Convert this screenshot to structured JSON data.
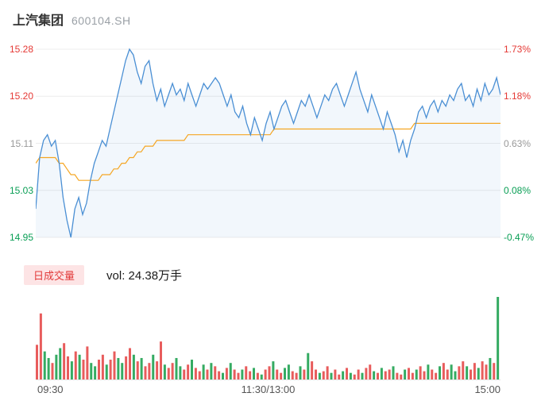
{
  "header": {
    "stock_name": "上汽集团",
    "stock_code": "600104.SH"
  },
  "volume_panel": {
    "tab_label": "日成交量",
    "value_text": "vol: 24.38万手"
  },
  "colors": {
    "up": "#e53935",
    "down": "#089e54",
    "flat": "#999999",
    "price_line": "#4a8fd4",
    "avg_line": "#f5a623",
    "price_fill": "rgba(74,143,212,0.07)",
    "vol_up": "#e85c5c",
    "vol_down": "#35ab62",
    "grid": "#ececec",
    "axis_text": "#555555"
  },
  "chart_data": {
    "type": "line",
    "title": "上汽集团 600104.SH 分时走势",
    "prev_close": 15.02,
    "ylim": [
      14.95,
      15.28
    ],
    "grid": true,
    "y_axis_left": {
      "labels": [
        "15.28",
        "15.20",
        "15.11",
        "15.03",
        "14.95"
      ],
      "roles": [
        "up",
        "up",
        "flat",
        "down",
        "down"
      ]
    },
    "y_axis_right": {
      "labels": [
        "1.73%",
        "1.18%",
        "0.63%",
        "0.08%",
        "-0.47%"
      ],
      "roles": [
        "up",
        "up",
        "flat",
        "down",
        "down"
      ]
    },
    "x_axis": {
      "labels": [
        "09:30",
        "11:30/13:00",
        "15:00"
      ]
    },
    "series": [
      {
        "name": "price",
        "values": [
          15.0,
          15.09,
          15.12,
          15.13,
          15.11,
          15.12,
          15.08,
          15.02,
          14.98,
          14.95,
          15.0,
          15.02,
          14.99,
          15.01,
          15.05,
          15.08,
          15.1,
          15.12,
          15.11,
          15.14,
          15.17,
          15.2,
          15.23,
          15.26,
          15.28,
          15.27,
          15.24,
          15.22,
          15.25,
          15.26,
          15.22,
          15.19,
          15.21,
          15.18,
          15.2,
          15.22,
          15.2,
          15.21,
          15.19,
          15.22,
          15.2,
          15.18,
          15.2,
          15.22,
          15.21,
          15.22,
          15.23,
          15.22,
          15.2,
          15.18,
          15.2,
          15.17,
          15.16,
          15.18,
          15.15,
          15.13,
          15.16,
          15.14,
          15.12,
          15.15,
          15.17,
          15.14,
          15.16,
          15.18,
          15.19,
          15.17,
          15.15,
          15.17,
          15.19,
          15.18,
          15.2,
          15.18,
          15.16,
          15.18,
          15.2,
          15.19,
          15.21,
          15.22,
          15.2,
          15.18,
          15.2,
          15.22,
          15.24,
          15.21,
          15.19,
          15.17,
          15.2,
          15.18,
          15.16,
          15.14,
          15.17,
          15.15,
          15.13,
          15.1,
          15.12,
          15.09,
          15.12,
          15.14,
          15.17,
          15.18,
          15.16,
          15.18,
          15.19,
          15.17,
          15.19,
          15.18,
          15.2,
          15.19,
          15.21,
          15.22,
          15.19,
          15.2,
          15.18,
          15.21,
          15.19,
          15.22,
          15.2,
          15.21,
          15.23,
          15.2
        ]
      },
      {
        "name": "avg",
        "values": [
          15.08,
          15.09,
          15.09,
          15.09,
          15.09,
          15.09,
          15.08,
          15.08,
          15.07,
          15.06,
          15.06,
          15.05,
          15.05,
          15.05,
          15.05,
          15.05,
          15.05,
          15.06,
          15.06,
          15.06,
          15.07,
          15.07,
          15.08,
          15.08,
          15.09,
          15.09,
          15.1,
          15.1,
          15.11,
          15.11,
          15.11,
          15.12,
          15.12,
          15.12,
          15.12,
          15.12,
          15.12,
          15.12,
          15.12,
          15.13,
          15.13,
          15.13,
          15.13,
          15.13,
          15.13,
          15.13,
          15.13,
          15.13,
          15.13,
          15.13,
          15.13,
          15.13,
          15.13,
          15.13,
          15.13,
          15.13,
          15.13,
          15.13,
          15.13,
          15.13,
          15.13,
          15.14,
          15.14,
          15.14,
          15.14,
          15.14,
          15.14,
          15.14,
          15.14,
          15.14,
          15.14,
          15.14,
          15.14,
          15.14,
          15.14,
          15.14,
          15.14,
          15.14,
          15.14,
          15.14,
          15.14,
          15.14,
          15.14,
          15.14,
          15.14,
          15.14,
          15.14,
          15.14,
          15.14,
          15.14,
          15.14,
          15.14,
          15.14,
          15.14,
          15.14,
          15.14,
          15.14,
          15.15,
          15.15,
          15.15,
          15.15,
          15.15,
          15.15,
          15.15,
          15.15,
          15.15,
          15.15,
          15.15,
          15.15,
          15.15,
          15.15,
          15.15,
          15.15,
          15.15,
          15.15,
          15.15,
          15.15,
          15.15,
          15.15,
          15.15
        ]
      }
    ],
    "volume": {
      "total_label": "vol: 24.38万手",
      "unit": "relative",
      "values": [
        0.42,
        0.8,
        0.34,
        0.26,
        0.2,
        0.3,
        0.38,
        0.44,
        0.28,
        0.22,
        0.34,
        0.3,
        0.24,
        0.4,
        0.2,
        0.16,
        0.24,
        0.3,
        0.18,
        0.24,
        0.34,
        0.26,
        0.2,
        0.28,
        0.38,
        0.3,
        0.22,
        0.26,
        0.16,
        0.2,
        0.3,
        0.22,
        0.46,
        0.18,
        0.14,
        0.2,
        0.26,
        0.16,
        0.12,
        0.18,
        0.24,
        0.14,
        0.1,
        0.18,
        0.12,
        0.2,
        0.16,
        0.1,
        0.08,
        0.14,
        0.2,
        0.12,
        0.08,
        0.12,
        0.16,
        0.1,
        0.14,
        0.08,
        0.06,
        0.12,
        0.16,
        0.22,
        0.12,
        0.08,
        0.14,
        0.18,
        0.1,
        0.08,
        0.16,
        0.12,
        0.32,
        0.22,
        0.12,
        0.08,
        0.1,
        0.16,
        0.08,
        0.12,
        0.06,
        0.1,
        0.14,
        0.08,
        0.06,
        0.12,
        0.08,
        0.14,
        0.18,
        0.1,
        0.08,
        0.14,
        0.1,
        0.12,
        0.16,
        0.08,
        0.06,
        0.12,
        0.14,
        0.08,
        0.12,
        0.16,
        0.1,
        0.18,
        0.12,
        0.08,
        0.16,
        0.2,
        0.12,
        0.18,
        0.1,
        0.16,
        0.22,
        0.16,
        0.12,
        0.2,
        0.14,
        0.22,
        0.18,
        0.26,
        0.2,
        1.0
      ],
      "colors": "rrggrggrrgrgrrggrrgrrggrrgrgrrgrrgrrggrrgrrgrgrrgrgrrgrrgrgrrgrrggrrgrgrrgrrgrrgrgrrgrrgrgrrgrrgrrgrrgrrgrrggrrgrrgrrgrgrrgrrgrr"
    }
  }
}
